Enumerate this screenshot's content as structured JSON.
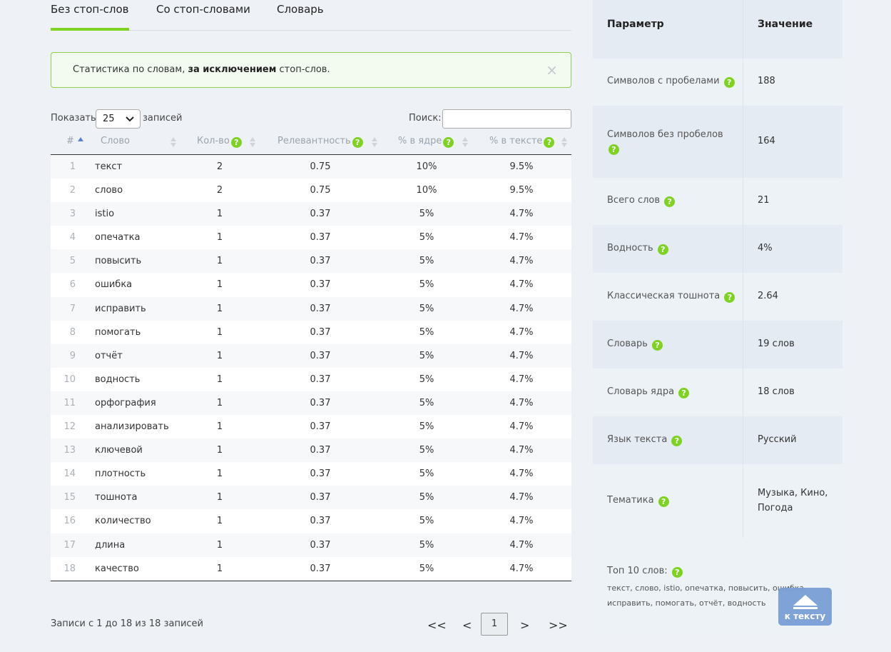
{
  "tabs": [
    {
      "label": "Без стоп-слов",
      "active": true
    },
    {
      "label": "Со стоп-словами",
      "active": false
    },
    {
      "label": "Словарь",
      "active": false
    }
  ],
  "alert": {
    "prefix": "Статистика по словам, ",
    "bold": "за исключением",
    "suffix": " стоп-слов.",
    "close": "×"
  },
  "controls": {
    "show_label": "Показать",
    "show_value": "25",
    "show_suffix": "записей",
    "search_label": "Поиск:",
    "search_value": ""
  },
  "table": {
    "headers": {
      "idx": "#",
      "word": "Слово",
      "count": "Кол-во",
      "relevance": "Релевантность",
      "core": "% в ядре",
      "text": "% в тексте"
    },
    "rows": [
      {
        "idx": "1",
        "word": "текст",
        "count": "2",
        "rel": "0.75",
        "core": "10%",
        "text": "9.5%"
      },
      {
        "idx": "2",
        "word": "слово",
        "count": "2",
        "rel": "0.75",
        "core": "10%",
        "text": "9.5%"
      },
      {
        "idx": "3",
        "word": "istio",
        "count": "1",
        "rel": "0.37",
        "core": "5%",
        "text": "4.7%"
      },
      {
        "idx": "4",
        "word": "опечатка",
        "count": "1",
        "rel": "0.37",
        "core": "5%",
        "text": "4.7%"
      },
      {
        "idx": "5",
        "word": "повысить",
        "count": "1",
        "rel": "0.37",
        "core": "5%",
        "text": "4.7%"
      },
      {
        "idx": "6",
        "word": "ошибка",
        "count": "1",
        "rel": "0.37",
        "core": "5%",
        "text": "4.7%"
      },
      {
        "idx": "7",
        "word": "исправить",
        "count": "1",
        "rel": "0.37",
        "core": "5%",
        "text": "4.7%"
      },
      {
        "idx": "8",
        "word": "помогать",
        "count": "1",
        "rel": "0.37",
        "core": "5%",
        "text": "4.7%"
      },
      {
        "idx": "9",
        "word": "отчёт",
        "count": "1",
        "rel": "0.37",
        "core": "5%",
        "text": "4.7%"
      },
      {
        "idx": "10",
        "word": "водность",
        "count": "1",
        "rel": "0.37",
        "core": "5%",
        "text": "4.7%"
      },
      {
        "idx": "11",
        "word": "орфография",
        "count": "1",
        "rel": "0.37",
        "core": "5%",
        "text": "4.7%"
      },
      {
        "idx": "12",
        "word": "анализировать",
        "count": "1",
        "rel": "0.37",
        "core": "5%",
        "text": "4.7%"
      },
      {
        "idx": "13",
        "word": "ключевой",
        "count": "1",
        "rel": "0.37",
        "core": "5%",
        "text": "4.7%"
      },
      {
        "idx": "14",
        "word": "плотность",
        "count": "1",
        "rel": "0.37",
        "core": "5%",
        "text": "4.7%"
      },
      {
        "idx": "15",
        "word": "тошнота",
        "count": "1",
        "rel": "0.37",
        "core": "5%",
        "text": "4.7%"
      },
      {
        "idx": "16",
        "word": "количество",
        "count": "1",
        "rel": "0.37",
        "core": "5%",
        "text": "4.7%"
      },
      {
        "idx": "17",
        "word": "длина",
        "count": "1",
        "rel": "0.37",
        "core": "5%",
        "text": "4.7%"
      },
      {
        "idx": "18",
        "word": "качество",
        "count": "1",
        "rel": "0.37",
        "core": "5%",
        "text": "4.7%"
      }
    ]
  },
  "footer": {
    "info": "Записи с 1 до 18 из 18 записей",
    "first": "<<",
    "prev": "<",
    "current": "1",
    "next": ">",
    "last": ">>"
  },
  "stats": {
    "header_param": "Параметр",
    "header_value": "Значение",
    "rows": [
      {
        "label": "Символов с пробелами",
        "value": "188"
      },
      {
        "label": "Символов без пробелов",
        "value": "164"
      },
      {
        "label": "Всего слов",
        "value": "21"
      },
      {
        "label": "Водность",
        "value": "4%"
      },
      {
        "label": "Классическая тошнота",
        "value": "2.64"
      },
      {
        "label": "Словарь",
        "value": "19 слов"
      },
      {
        "label": "Словарь ядра",
        "value": "18 слов"
      },
      {
        "label": "Язык текста",
        "value": "Русский"
      },
      {
        "label": "Тематика",
        "value": "Музыка, Кино, Погода"
      }
    ],
    "top10_title": "Топ 10 слов:",
    "top10_list": "текст, слово, istio, опечатка, повысить, ошибка, исправить, помогать, отчёт, водность"
  },
  "help_glyph": "?",
  "back_button": {
    "label": "к тексту"
  },
  "colors": {
    "accent": "#7ed321",
    "background": "#eef2f6",
    "panel": "#e4ebf3",
    "back_button": "#7a9fd6"
  }
}
